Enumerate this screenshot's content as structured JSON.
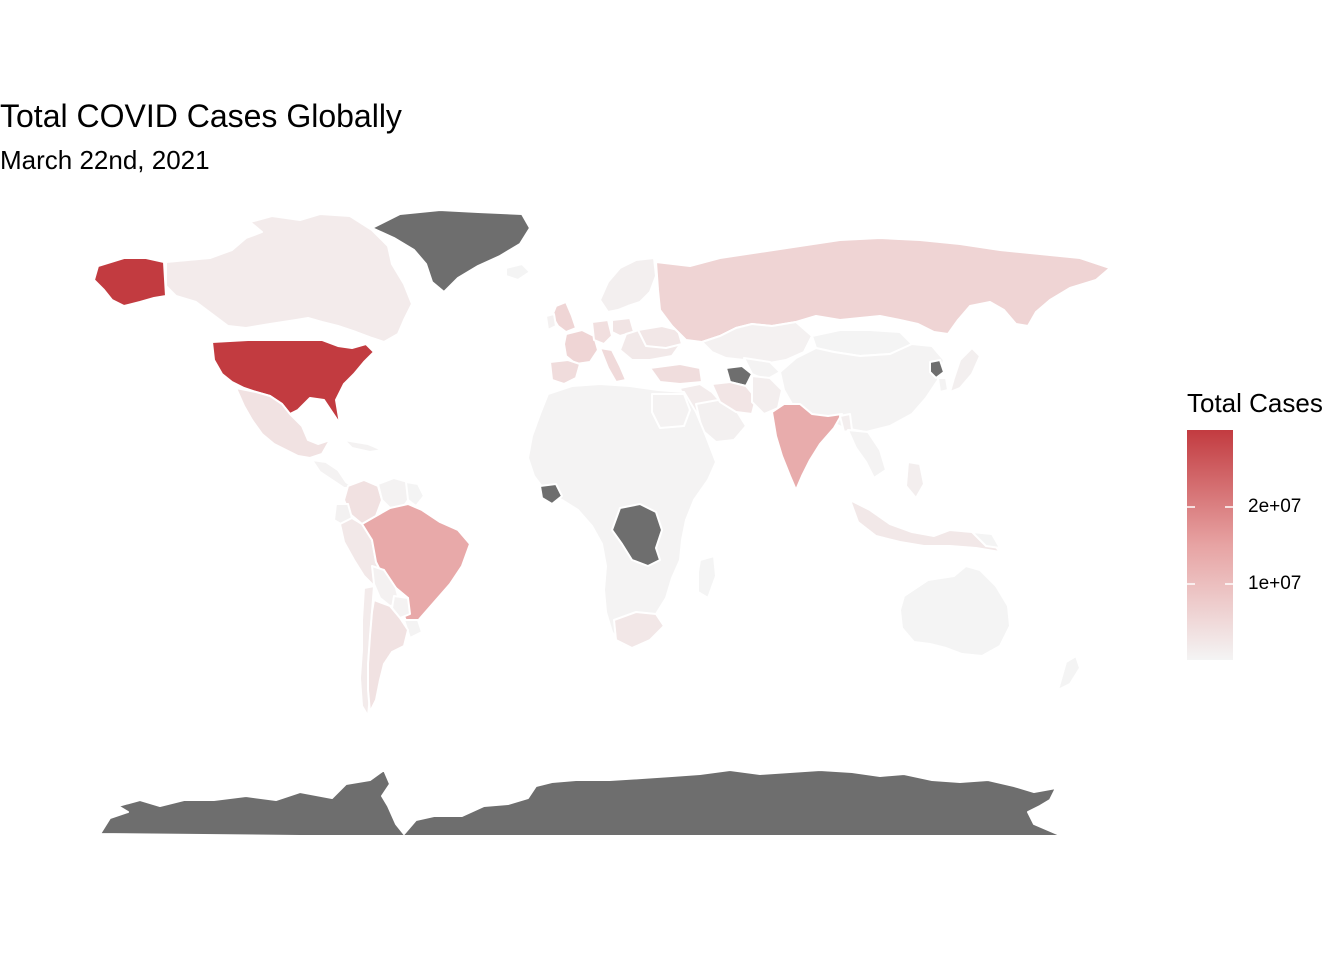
{
  "chart_data": {
    "type": "choropleth",
    "title": "Total COVID Cases Globally",
    "subtitle": "March 22nd, 2021",
    "legend": {
      "title": "Total Cases",
      "position": "right",
      "scale_min": 0,
      "scale_max": 29900000,
      "breaks": [
        {
          "value": 10000000,
          "label": "1e+07"
        },
        {
          "value": 20000000,
          "label": "2e+07"
        }
      ],
      "color_low": "#f4f4f4",
      "color_high": "#c23b40"
    },
    "colors": {
      "na": "#6e6e6e",
      "background": "#ffffff",
      "border": "#ffffff"
    },
    "regions": [
      {
        "name": "United States",
        "cases": 29900000
      },
      {
        "name": "Brazil",
        "cases": 12000000
      },
      {
        "name": "India",
        "cases": 11600000
      },
      {
        "name": "Russia",
        "cases": 4400000
      },
      {
        "name": "France",
        "cases": 4300000
      },
      {
        "name": "United Kingdom",
        "cases": 4300000
      },
      {
        "name": "Italy",
        "cases": 3400000
      },
      {
        "name": "Spain",
        "cases": 3200000
      },
      {
        "name": "Turkey",
        "cases": 3000000
      },
      {
        "name": "Germany",
        "cases": 2700000
      },
      {
        "name": "Colombia",
        "cases": 2350000
      },
      {
        "name": "Argentina",
        "cases": 2250000
      },
      {
        "name": "Mexico",
        "cases": 2200000
      },
      {
        "name": "Poland",
        "cases": 2000000
      },
      {
        "name": "Iran",
        "cases": 1800000
      },
      {
        "name": "Ukraine",
        "cases": 1600000
      },
      {
        "name": "South Africa",
        "cases": 1540000
      },
      {
        "name": "Peru",
        "cases": 1450000
      },
      {
        "name": "Indonesia",
        "cases": 1460000
      },
      {
        "name": "Chile",
        "cases": 940000
      },
      {
        "name": "Canada",
        "cases": 940000
      },
      {
        "name": "Philippines",
        "cases": 670000
      },
      {
        "name": "Sweden",
        "cases": 740000
      },
      {
        "name": "Iraq",
        "cases": 780000
      },
      {
        "name": "Saudi Arabia",
        "cases": 390000
      },
      {
        "name": "Pakistan",
        "cases": 630000
      },
      {
        "name": "Bangladesh",
        "cases": 570000
      },
      {
        "name": "Kazakhstan",
        "cases": 280000
      },
      {
        "name": "China",
        "cases": 101000
      },
      {
        "name": "Australia",
        "cases": 29000
      },
      {
        "name": "Egypt",
        "cases": 196000
      },
      {
        "name": "Japan",
        "cases": 455000
      },
      {
        "name": "Mongolia",
        "cases": 6000
      },
      {
        "name": "Greenland",
        "cases": null
      },
      {
        "name": "Antarctica",
        "cases": null
      },
      {
        "name": "Dem. Rep. Congo",
        "cases": null
      },
      {
        "name": "Turkmenistan",
        "cases": null
      },
      {
        "name": "North Korea",
        "cases": null
      }
    ]
  }
}
